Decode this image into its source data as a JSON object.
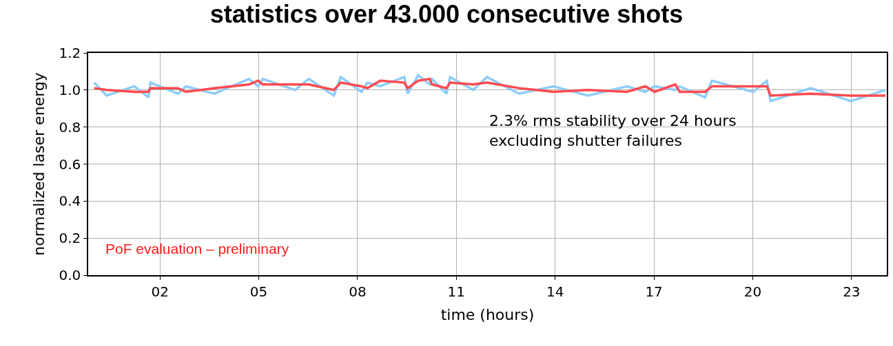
{
  "chart_data": {
    "type": "line",
    "title": "statistics over 43.000 consecutive shots",
    "xlabel": "time (hours)",
    "ylabel": "normalized laser energy",
    "annotations": [
      "2.3% rms stability over 24 hours\nexcluding shutter failures",
      "PoF evaluation – preliminary"
    ],
    "x": [
      0.0,
      0.38,
      1.22,
      1.65,
      1.71,
      2.54,
      2.79,
      3.65,
      4.7,
      4.98,
      5.12,
      6.1,
      6.52,
      7.28,
      7.49,
      8.12,
      8.3,
      8.69,
      9.42,
      9.52,
      9.84,
      10.19,
      10.26,
      10.7,
      10.81,
      11.51,
      11.93,
      12.9,
      13.95,
      14.99,
      16.18,
      16.74,
      17.02,
      17.65,
      17.78,
      18.55,
      18.76,
      20.01,
      20.43,
      20.54,
      21.76,
      22.98,
      24.03
    ],
    "series": [
      {
        "color": "#8ecdf8",
        "values": [
          1.04,
          0.97,
          1.02,
          0.96,
          1.04,
          0.98,
          1.02,
          0.98,
          1.06,
          1.02,
          1.06,
          1.0,
          1.06,
          0.97,
          1.07,
          0.99,
          1.04,
          1.02,
          1.07,
          0.98,
          1.08,
          1.03,
          1.06,
          0.98,
          1.07,
          1.0,
          1.07,
          0.98,
          1.02,
          0.97,
          1.02,
          0.99,
          1.02,
          1.0,
          1.02,
          0.96,
          1.05,
          0.99,
          1.05,
          0.94,
          1.01,
          0.94,
          1.0
        ]
      },
      {
        "color": "#ff4a4f",
        "values": [
          1.01,
          1.0,
          0.99,
          0.99,
          1.01,
          1.01,
          0.99,
          1.01,
          1.03,
          1.05,
          1.03,
          1.03,
          1.03,
          1.0,
          1.04,
          1.02,
          1.01,
          1.05,
          1.04,
          1.01,
          1.05,
          1.06,
          1.03,
          1.01,
          1.04,
          1.03,
          1.04,
          1.01,
          0.99,
          1.0,
          0.99,
          1.02,
          0.99,
          1.03,
          0.99,
          0.99,
          1.02,
          1.02,
          1.02,
          0.97,
          0.98,
          0.97,
          0.97
        ]
      }
    ],
    "xlim": [
      -0.18,
      24.07
    ],
    "xticks": [
      {
        "value": 2,
        "label": "02"
      },
      {
        "value": 5,
        "label": "05"
      },
      {
        "value": 8,
        "label": "08"
      },
      {
        "value": 11,
        "label": "11"
      },
      {
        "value": 14,
        "label": "14"
      },
      {
        "value": 17,
        "label": "17"
      },
      {
        "value": 20,
        "label": "20"
      },
      {
        "value": 23,
        "label": "23"
      }
    ],
    "ylim": [
      0,
      1.2
    ],
    "yticks": [
      {
        "value": 0,
        "label": "0.0"
      },
      {
        "value": 0.2,
        "label": "0.2"
      },
      {
        "value": 0.4,
        "label": "0.4"
      },
      {
        "value": 0.6,
        "label": "0.6"
      },
      {
        "value": 0.8,
        "label": "0.8"
      },
      {
        "value": 1.0,
        "label": "1.0"
      },
      {
        "value": 1.2,
        "label": "1.2"
      }
    ],
    "grid": true
  }
}
